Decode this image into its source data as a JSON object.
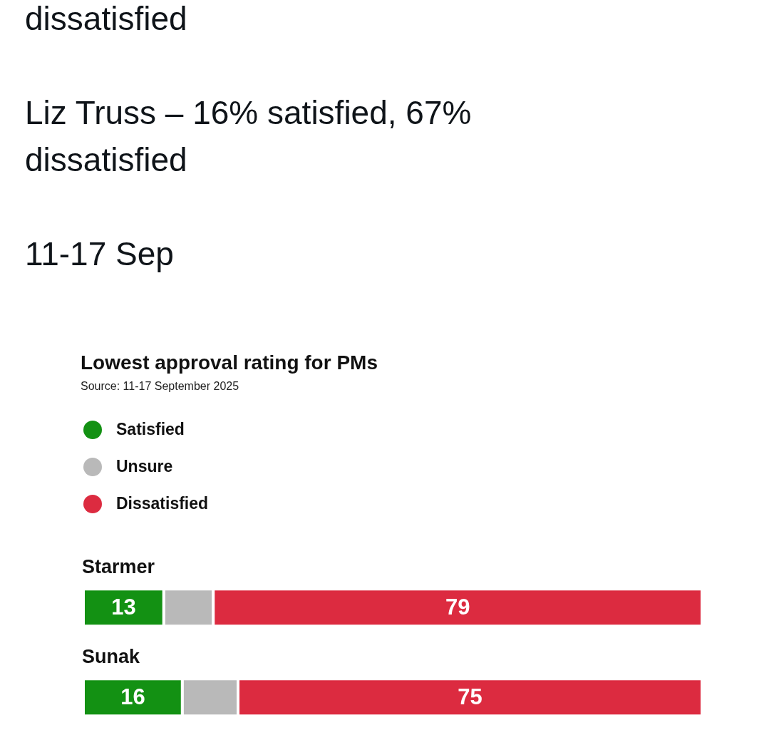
{
  "chart_data": {
    "type": "bar",
    "title": "Lowest approval rating for PMs",
    "subtitle": "Source: 11-17 September 2025",
    "annotations": [
      "dissatisfied",
      "Liz Truss – 16% satisfied, 67% dissatisfied",
      "11-17 Sep"
    ],
    "categories": [
      "Starmer",
      "Sunak"
    ],
    "orientation": "horizontal",
    "stacked": true,
    "legend": "top left",
    "series": [
      {
        "name": "Satisfied",
        "color": "#139113",
        "values": [
          13,
          16
        ],
        "value_labels": [
          "13",
          "16"
        ]
      },
      {
        "name": "Unsure",
        "color": "#b9b9b9",
        "values": [
          8,
          9
        ],
        "value_labels": [
          null,
          null
        ]
      },
      {
        "name": "Dissatisfied",
        "color": "#dc2b40",
        "values": [
          79,
          75
        ],
        "value_labels": [
          "79",
          "75"
        ]
      }
    ]
  }
}
